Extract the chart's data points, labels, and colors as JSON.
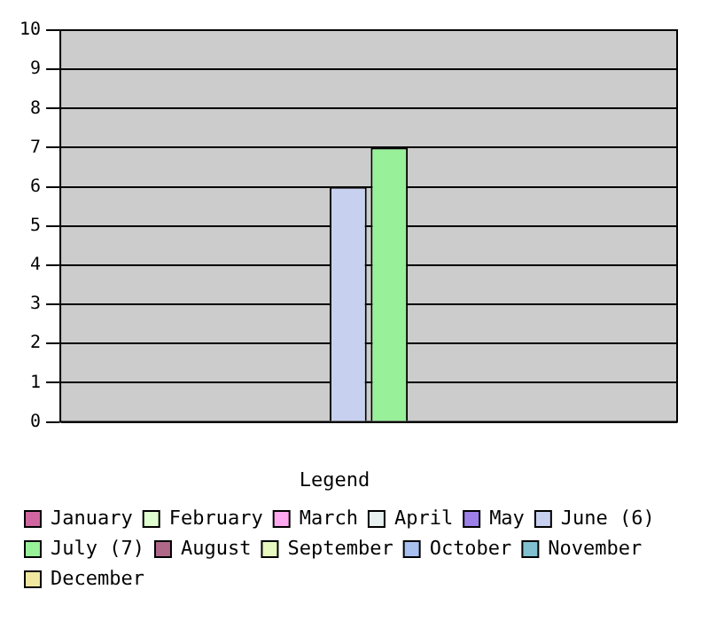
{
  "chart_data": {
    "type": "bar",
    "legend_title": "Legend",
    "categories": [
      null
    ],
    "series": [
      {
        "name": "January",
        "color": "#d066a0",
        "values": [
          0
        ]
      },
      {
        "name": "February",
        "color": "#e0ffd0",
        "values": [
          0
        ]
      },
      {
        "name": "March",
        "color": "#ffa8f0",
        "values": [
          0
        ]
      },
      {
        "name": "April",
        "color": "#e8f0f0",
        "values": [
          0
        ]
      },
      {
        "name": "May",
        "color": "#9c80e8",
        "values": [
          0
        ]
      },
      {
        "name": "June (6)",
        "color": "#c8d0f0",
        "values": [
          6
        ]
      },
      {
        "name": "July (7)",
        "color": "#98f098",
        "values": [
          7
        ]
      },
      {
        "name": "August",
        "color": "#b06888",
        "values": [
          0
        ]
      },
      {
        "name": "September",
        "color": "#e8f8c0",
        "values": [
          0
        ]
      },
      {
        "name": "October",
        "color": "#a8c0f0",
        "values": [
          0
        ]
      },
      {
        "name": "November",
        "color": "#80c0d0",
        "values": [
          0
        ]
      },
      {
        "name": "December",
        "color": "#f0e8a0",
        "values": [
          0
        ]
      }
    ],
    "ylim": [
      0,
      10
    ],
    "yticks": [
      0,
      1,
      2,
      3,
      4,
      5,
      6,
      7,
      8,
      9,
      10
    ],
    "grid": "y",
    "legend": "bottom"
  }
}
